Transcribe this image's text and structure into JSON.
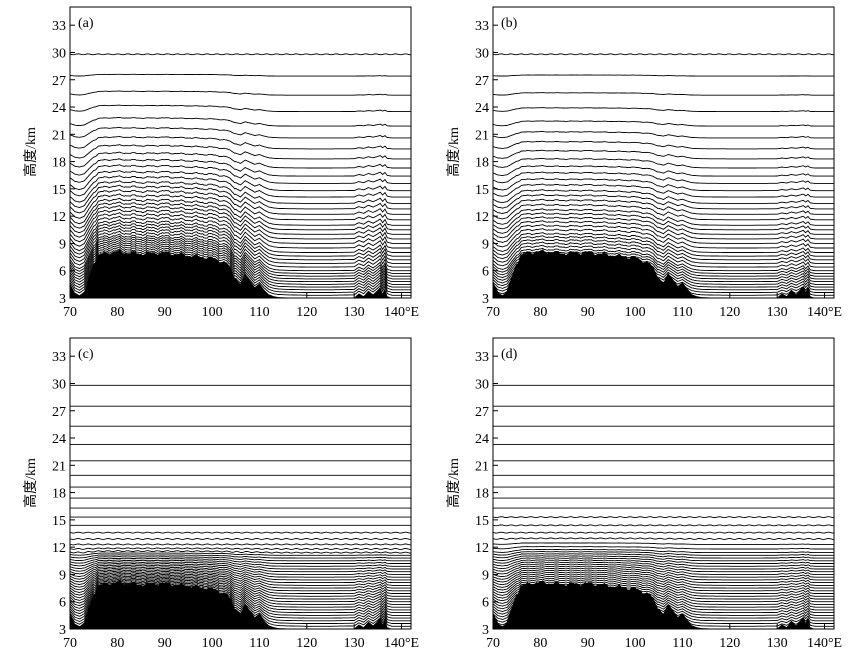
{
  "chart_data": [
    {
      "type": "line",
      "panel_label": "(a)",
      "ylabel": "高度/km",
      "ylim": [
        3,
        35
      ],
      "yticks": [
        3,
        6,
        9,
        12,
        15,
        18,
        21,
        24,
        27,
        30,
        33
      ],
      "xlim": [
        70,
        142
      ],
      "xticks": [
        70,
        80,
        90,
        100,
        110,
        120,
        130,
        140
      ],
      "xtick_labels": [
        "70",
        "80",
        "90",
        "100",
        "110",
        "120",
        "130",
        "140°E"
      ],
      "grid": false,
      "terrain_heights_km": {
        "lon": [
          70,
          71,
          72,
          73,
          74,
          75,
          76,
          77,
          78,
          80,
          85,
          90,
          95,
          100,
          103,
          105,
          106,
          107,
          108,
          109,
          110,
          111,
          112,
          113,
          114,
          116,
          120,
          125,
          130,
          131,
          132,
          133,
          134,
          135,
          135.5,
          136,
          136.5,
          137,
          138,
          142
        ],
        "z": [
          4.6,
          3.6,
          3.3,
          3.7,
          5.2,
          6.6,
          7.6,
          7.8,
          7.9,
          8.0,
          7.8,
          7.9,
          7.6,
          7.3,
          6.7,
          5.1,
          4.5,
          5.6,
          4.9,
          4.2,
          4.6,
          3.9,
          3.4,
          3.2,
          3.1,
          3.05,
          3.0,
          3.0,
          3.05,
          3.5,
          3.2,
          3.8,
          3.4,
          3.9,
          4.2,
          3.5,
          4.1,
          3.2,
          3.0,
          3.0
        ]
      },
      "level_heights_km": [
        3.3,
        3.6,
        3.9,
        4.2,
        4.5,
        4.8,
        5.1,
        5.4,
        5.7,
        6.0,
        6.4,
        6.8,
        7.2,
        7.6,
        8.0,
        8.5,
        9.0,
        9.5,
        10.0,
        10.5,
        11.0,
        11.6,
        12.2,
        12.8,
        13.4,
        14.1,
        14.8,
        15.6,
        16.4,
        17.3,
        18.3,
        19.4,
        20.6,
        21.9,
        23.5,
        25.3,
        27.4,
        29.8
      ],
      "influence_top_km": 29.8,
      "coupling": 0.9
    },
    {
      "type": "line",
      "panel_label": "(b)",
      "ylabel": "高度/km",
      "ylim": [
        3,
        35
      ],
      "yticks": [
        3,
        6,
        9,
        12,
        15,
        18,
        21,
        24,
        27,
        30,
        33
      ],
      "xlim": [
        70,
        142
      ],
      "xticks": [
        70,
        80,
        90,
        100,
        110,
        120,
        130,
        140
      ],
      "xtick_labels": [
        "70",
        "80",
        "90",
        "100",
        "110",
        "120",
        "130",
        "140°E"
      ],
      "grid": false,
      "terrain_heights_km": {
        "lon": [
          70,
          71,
          72,
          73,
          74,
          75,
          76,
          77,
          78,
          80,
          85,
          90,
          95,
          100,
          103,
          105,
          106,
          107,
          108,
          109,
          110,
          111,
          112,
          113,
          114,
          116,
          120,
          125,
          130,
          131,
          132,
          133,
          134,
          135,
          135.5,
          136,
          136.5,
          137,
          138,
          142
        ],
        "z": [
          4.6,
          3.6,
          3.3,
          3.7,
          5.2,
          6.6,
          7.6,
          7.8,
          7.9,
          8.0,
          7.8,
          7.9,
          7.6,
          7.3,
          6.7,
          5.1,
          4.5,
          5.6,
          4.9,
          4.2,
          4.6,
          3.9,
          3.4,
          3.2,
          3.1,
          3.05,
          3.0,
          3.0,
          3.05,
          3.5,
          3.2,
          3.8,
          3.4,
          3.9,
          4.2,
          3.5,
          4.1,
          3.2,
          3.0,
          3.0
        ]
      },
      "level_heights_km": [
        3.3,
        3.6,
        3.9,
        4.2,
        4.5,
        4.8,
        5.1,
        5.4,
        5.7,
        6.0,
        6.4,
        6.8,
        7.2,
        7.6,
        8.0,
        8.5,
        9.0,
        9.5,
        10.0,
        10.5,
        11.0,
        11.6,
        12.2,
        12.8,
        13.4,
        14.1,
        14.8,
        15.6,
        16.4,
        17.3,
        18.3,
        19.4,
        20.6,
        21.9,
        23.5,
        25.3,
        27.4,
        29.8
      ],
      "influence_top_km": 29.8,
      "coupling": 0.55
    },
    {
      "type": "line",
      "panel_label": "(c)",
      "ylabel": "高度/km",
      "ylim": [
        3,
        35
      ],
      "yticks": [
        3,
        6,
        9,
        12,
        15,
        18,
        21,
        24,
        27,
        30,
        33
      ],
      "xlim": [
        70,
        142
      ],
      "xticks": [
        70,
        80,
        90,
        100,
        110,
        120,
        130,
        140
      ],
      "xtick_labels": [
        "70",
        "80",
        "90",
        "100",
        "110",
        "120",
        "130",
        "140°E"
      ],
      "grid": false,
      "terrain_heights_km": {
        "lon": [
          70,
          71,
          72,
          73,
          74,
          75,
          76,
          77,
          78,
          80,
          85,
          90,
          95,
          100,
          103,
          105,
          106,
          107,
          108,
          109,
          110,
          111,
          112,
          113,
          114,
          116,
          120,
          125,
          130,
          131,
          132,
          133,
          134,
          135,
          135.5,
          136,
          136.5,
          137,
          138,
          142
        ],
        "z": [
          4.6,
          3.6,
          3.3,
          3.7,
          5.2,
          6.6,
          7.6,
          7.8,
          7.9,
          8.0,
          7.8,
          7.9,
          7.6,
          7.3,
          6.7,
          5.1,
          4.5,
          5.6,
          4.9,
          4.2,
          4.6,
          3.9,
          3.4,
          3.2,
          3.1,
          3.05,
          3.0,
          3.0,
          3.05,
          3.5,
          3.2,
          3.8,
          3.4,
          3.9,
          4.2,
          3.5,
          4.1,
          3.2,
          3.0,
          3.0
        ]
      },
      "level_heights_km": [
        3.3,
        3.6,
        3.9,
        4.2,
        4.5,
        4.8,
        5.1,
        5.4,
        5.7,
        6.0,
        6.3,
        6.6,
        6.9,
        7.2,
        7.5,
        7.8,
        8.1,
        8.4,
        8.7,
        9.0,
        9.3,
        9.6,
        9.9,
        10.2,
        10.5,
        10.8,
        11.1,
        11.4,
        11.8,
        12.3,
        12.9,
        13.6,
        14.4,
        15.3,
        16.3,
        17.4,
        18.6,
        19.9,
        21.5,
        23.3,
        25.3,
        27.5,
        29.8
      ],
      "influence_top_km": 12.2,
      "coupling": 0.8
    },
    {
      "type": "line",
      "panel_label": "(d)",
      "ylabel": "高度/km",
      "ylim": [
        3,
        35
      ],
      "yticks": [
        3,
        6,
        9,
        12,
        15,
        18,
        21,
        24,
        27,
        30,
        33
      ],
      "xlim": [
        70,
        142
      ],
      "xticks": [
        70,
        80,
        90,
        100,
        110,
        120,
        130,
        140
      ],
      "xtick_labels": [
        "70",
        "80",
        "90",
        "100",
        "110",
        "120",
        "130",
        "140°E"
      ],
      "grid": false,
      "terrain_heights_km": {
        "lon": [
          70,
          71,
          72,
          73,
          74,
          75,
          76,
          77,
          78,
          80,
          85,
          90,
          95,
          100,
          103,
          105,
          106,
          107,
          108,
          109,
          110,
          111,
          112,
          113,
          114,
          116,
          120,
          125,
          130,
          131,
          132,
          133,
          134,
          135,
          135.5,
          136,
          136.5,
          137,
          138,
          142
        ],
        "z": [
          4.6,
          3.6,
          3.3,
          3.7,
          5.2,
          6.6,
          7.6,
          7.8,
          7.9,
          8.0,
          7.8,
          7.9,
          7.6,
          7.3,
          6.7,
          5.1,
          4.5,
          5.6,
          4.9,
          4.2,
          4.6,
          3.9,
          3.4,
          3.2,
          3.1,
          3.05,
          3.0,
          3.0,
          3.05,
          3.5,
          3.2,
          3.8,
          3.4,
          3.9,
          4.2,
          3.5,
          4.1,
          3.2,
          3.0,
          3.0
        ]
      },
      "level_heights_km": [
        3.3,
        3.6,
        3.9,
        4.2,
        4.5,
        4.8,
        5.1,
        5.4,
        5.7,
        6.0,
        6.3,
        6.6,
        6.9,
        7.2,
        7.5,
        7.8,
        8.1,
        8.4,
        8.7,
        9.0,
        9.3,
        9.6,
        9.9,
        10.2,
        10.5,
        10.8,
        11.1,
        11.4,
        11.8,
        12.3,
        12.9,
        13.6,
        14.4,
        15.3,
        16.3,
        17.4,
        18.6,
        19.9,
        21.5,
        23.3,
        25.3,
        27.5,
        29.8
      ],
      "influence_top_km": 13.5,
      "coupling": 0.55
    }
  ],
  "colors": {
    "line": "#000000",
    "terrain": "#000000",
    "background": "#ffffff"
  }
}
